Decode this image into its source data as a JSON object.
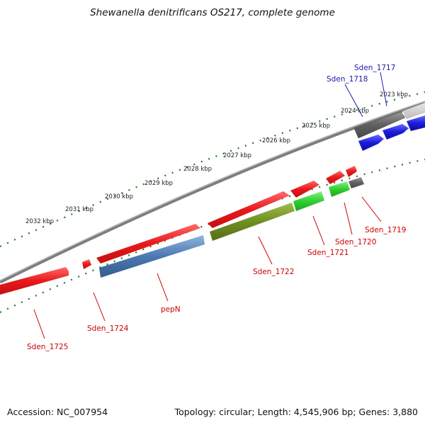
{
  "title": "Shewanella denitrificans OS217, complete genome",
  "footer": {
    "accession": "Accession: NC_007954",
    "summary": "Topology: circular; Length: 4,545,906 bp; Genes: 3,880"
  },
  "colors": {
    "backbone": "#8a8a8a",
    "tick": "#1f7a1f",
    "red_gene": "#e8191c",
    "blue_gene": "#1b1bd9",
    "green_gene": "#2fcf2f",
    "olive_gene": "#6f8f22",
    "steel_gene": "#4a78b0",
    "gray_gene": "#606060",
    "label_red": "#cc0000",
    "label_blue": "#1a1aaa"
  },
  "kbp_labels": [
    "2023 kbp",
    "2024 kbp",
    "2025 kbp",
    "2026 kbp",
    "2027 kbp",
    "2028 kbp",
    "2029 kbp",
    "2030 kbp",
    "2031 kbp",
    "2032 kbp"
  ],
  "genes": [
    {
      "id": "Sden_1717",
      "color": "blue",
      "strand": "top"
    },
    {
      "id": "Sden_1718",
      "color": "gray",
      "strand": "top"
    },
    {
      "id": "Sden_1719",
      "color": "gray",
      "strand": "bottom"
    },
    {
      "id": "Sden_1720",
      "color": "green",
      "strand": "bottom"
    },
    {
      "id": "Sden_1721",
      "color": "green",
      "strand": "bottom"
    },
    {
      "id": "Sden_1722",
      "color": "olive",
      "strand": "bottom"
    },
    {
      "id": "pepN",
      "color": "steel-blue",
      "strand": "bottom"
    },
    {
      "id": "Sden_1724",
      "color": "red",
      "strand": "bottom"
    },
    {
      "id": "Sden_1725",
      "color": "red",
      "strand": "bottom"
    }
  ]
}
